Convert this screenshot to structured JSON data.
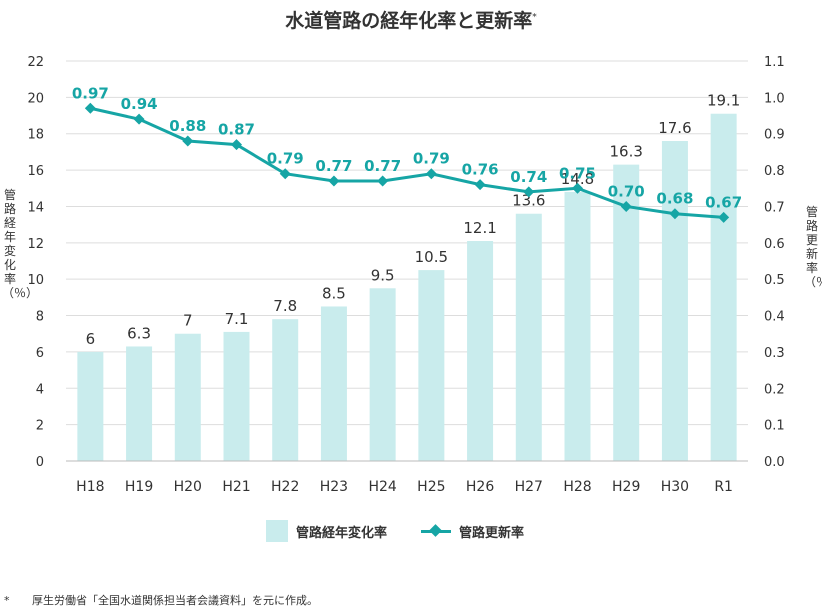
{
  "title": "水道管路の経年化率と更新率",
  "title_mark": "*",
  "legend": {
    "bars_label": "管路経年変化率",
    "line_label": "管路更新率"
  },
  "left_axis_label": "管路経年変化率（％）",
  "right_axis_label": "管路更新率（％）",
  "footnote": {
    "mark": "*",
    "text": "厚生労働省「全国水道関係担当者会議資料」を元に作成。"
  },
  "colors": {
    "bar": "#c9eced",
    "line": "#16a5a5",
    "grid": "#dddddd",
    "text": "#333333"
  },
  "chart_data": {
    "type": "bar",
    "title": "水道管路の経年化率と更新率",
    "categories": [
      "H18",
      "H19",
      "H20",
      "H21",
      "H22",
      "H23",
      "H24",
      "H25",
      "H26",
      "H27",
      "H28",
      "H29",
      "H30",
      "R1"
    ],
    "series": [
      {
        "name": "管路経年変化率",
        "type": "bar",
        "axis": "left",
        "values": [
          6,
          6.3,
          7,
          7.1,
          7.8,
          8.5,
          9.5,
          10.5,
          12.1,
          13.6,
          14.8,
          16.3,
          17.6,
          19.1
        ],
        "labels": [
          "6",
          "6.3",
          "7",
          "7.1",
          "7.8",
          "8.5",
          "9.5",
          "10.5",
          "12.1",
          "13.6",
          "14.8",
          "16.3",
          "17.6",
          "19.1"
        ]
      },
      {
        "name": "管路更新率",
        "type": "line",
        "axis": "right",
        "values": [
          0.97,
          0.94,
          0.88,
          0.87,
          0.79,
          0.77,
          0.77,
          0.79,
          0.76,
          0.74,
          0.75,
          0.7,
          0.68,
          0.67
        ],
        "labels": [
          "0.97",
          "0.94",
          "0.88",
          "0.87",
          "0.79",
          "0.77",
          "0.77",
          "0.79",
          "0.76",
          "0.74",
          "0.75",
          "0.70",
          "0.68",
          "0.67"
        ]
      }
    ],
    "ylabel": "管路経年変化率（％）",
    "y2label": "管路更新率（％）",
    "ylim": [
      0,
      22
    ],
    "y2lim": [
      0,
      1.1
    ],
    "yticks": [
      "0",
      "2",
      "4",
      "6",
      "8",
      "10",
      "12",
      "14",
      "16",
      "18",
      "20",
      "22"
    ],
    "y2ticks": [
      "0.0",
      "0.1",
      "0.2",
      "0.3",
      "0.4",
      "0.5",
      "0.6",
      "0.7",
      "0.8",
      "0.9",
      "1.0",
      "1.1"
    ],
    "grid": true,
    "legend_position": "bottom"
  }
}
